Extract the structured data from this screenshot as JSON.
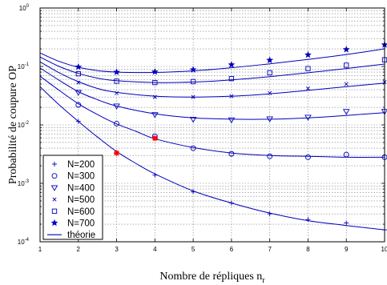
{
  "chart_data": {
    "type": "line",
    "xlabel": "Nombre de répliques n",
    "xlabel_sub": "r",
    "ylabel": "Probabilité de coupure OP",
    "xlim": [
      1,
      10
    ],
    "ylim": [
      0.0001,
      1
    ],
    "yscale": "log",
    "grid": true,
    "legend_position": "bottom-left",
    "x_ticks": [
      "1",
      "2",
      "3",
      "4",
      "5",
      "6",
      "7",
      "8",
      "9",
      "10"
    ],
    "y_ticks": [
      {
        "base": "10",
        "exp": "-4"
      },
      {
        "base": "10",
        "exp": "-3"
      },
      {
        "base": "10",
        "exp": "-2"
      },
      {
        "base": "10",
        "exp": "-1"
      },
      {
        "base": "10",
        "exp": "0"
      }
    ],
    "colors": {
      "series": "#0000bb",
      "highlight": "#ff0000",
      "grid": "#808080"
    },
    "series": [
      {
        "name": "N=200",
        "marker": "plus",
        "x": [
          2,
          3,
          4,
          5,
          6,
          7,
          8,
          9,
          10
        ],
        "values": [
          0.0115,
          0.0033,
          0.00138,
          0.00072,
          0.00046,
          0.0003,
          0.00024,
          0.00021,
          0.00016
        ]
      },
      {
        "name": "N=300",
        "marker": "circle",
        "x": [
          2,
          3,
          4,
          5,
          6,
          7,
          8,
          9,
          10
        ],
        "values": [
          0.022,
          0.0105,
          0.0064,
          0.004,
          0.0032,
          0.0029,
          0.0028,
          0.0031,
          0.0028
        ]
      },
      {
        "name": "N=400",
        "marker": "triangle-down",
        "x": [
          2,
          3,
          4,
          5,
          6,
          7,
          8,
          9,
          10
        ],
        "values": [
          0.036,
          0.021,
          0.015,
          0.0125,
          0.0122,
          0.0127,
          0.0135,
          0.017,
          0.017
        ]
      },
      {
        "name": "N=500",
        "marker": "x",
        "x": [
          2,
          3,
          4,
          5,
          6,
          7,
          8,
          9,
          10
        ],
        "values": [
          0.053,
          0.035,
          0.03,
          0.03,
          0.031,
          0.035,
          0.042,
          0.05,
          0.054
        ]
      },
      {
        "name": "N=600",
        "marker": "square",
        "x": [
          2,
          3,
          4,
          5,
          6,
          7,
          8,
          9,
          10
        ],
        "values": [
          0.075,
          0.056,
          0.053,
          0.055,
          0.062,
          0.078,
          0.092,
          0.105,
          0.13
        ]
      },
      {
        "name": "N=700",
        "marker": "star",
        "x": [
          2,
          3,
          4,
          5,
          6,
          7,
          8,
          9,
          10
        ],
        "values": [
          0.098,
          0.08,
          0.081,
          0.088,
          0.107,
          0.128,
          0.158,
          0.195,
          0.235
        ]
      },
      {
        "name": "théorie",
        "marker": "line"
      }
    ],
    "theory_curves": [
      {
        "for": "N=200",
        "x": [
          1,
          1.5,
          2,
          2.5,
          3,
          3.5,
          4,
          5,
          6,
          7,
          8,
          9,
          10
        ],
        "values": [
          0.045,
          0.022,
          0.0115,
          0.0062,
          0.0035,
          0.0022,
          0.00145,
          0.00074,
          0.00046,
          0.00031,
          0.00023,
          0.00019,
          0.00016
        ]
      },
      {
        "for": "N=300",
        "x": [
          1,
          1.5,
          2,
          2.5,
          3,
          3.5,
          4,
          5,
          6,
          7,
          8,
          9,
          10
        ],
        "values": [
          0.068,
          0.039,
          0.023,
          0.015,
          0.0104,
          0.0078,
          0.0058,
          0.0041,
          0.0033,
          0.003,
          0.0029,
          0.0028,
          0.0028
        ]
      },
      {
        "for": "N=400",
        "x": [
          1,
          1.5,
          2,
          2.5,
          3,
          4,
          5,
          6,
          7,
          8,
          9,
          10
        ],
        "values": [
          0.094,
          0.058,
          0.037,
          0.027,
          0.021,
          0.0155,
          0.0132,
          0.0125,
          0.0125,
          0.0132,
          0.0145,
          0.0162
        ]
      },
      {
        "for": "N=500",
        "x": [
          1,
          1.5,
          2,
          2.5,
          3,
          4,
          5,
          6,
          7,
          8,
          9,
          10
        ],
        "values": [
          0.12,
          0.078,
          0.055,
          0.042,
          0.036,
          0.031,
          0.03,
          0.031,
          0.034,
          0.039,
          0.045,
          0.052
        ]
      },
      {
        "for": "N=600",
        "x": [
          1,
          1.5,
          2,
          2.5,
          3,
          4,
          5,
          6,
          7,
          8,
          9,
          10
        ],
        "values": [
          0.145,
          0.1,
          0.076,
          0.063,
          0.057,
          0.053,
          0.054,
          0.059,
          0.067,
          0.078,
          0.092,
          0.11
        ]
      },
      {
        "for": "N=700",
        "x": [
          1,
          1.5,
          2,
          2.5,
          3,
          4,
          5,
          6,
          7,
          8,
          9,
          10
        ],
        "values": [
          0.17,
          0.122,
          0.097,
          0.085,
          0.08,
          0.079,
          0.084,
          0.095,
          0.111,
          0.132,
          0.16,
          0.2
        ]
      }
    ],
    "highlight_points": [
      {
        "x": 3,
        "y": 0.0033
      },
      {
        "x": 4,
        "y": 0.0059
      }
    ]
  }
}
